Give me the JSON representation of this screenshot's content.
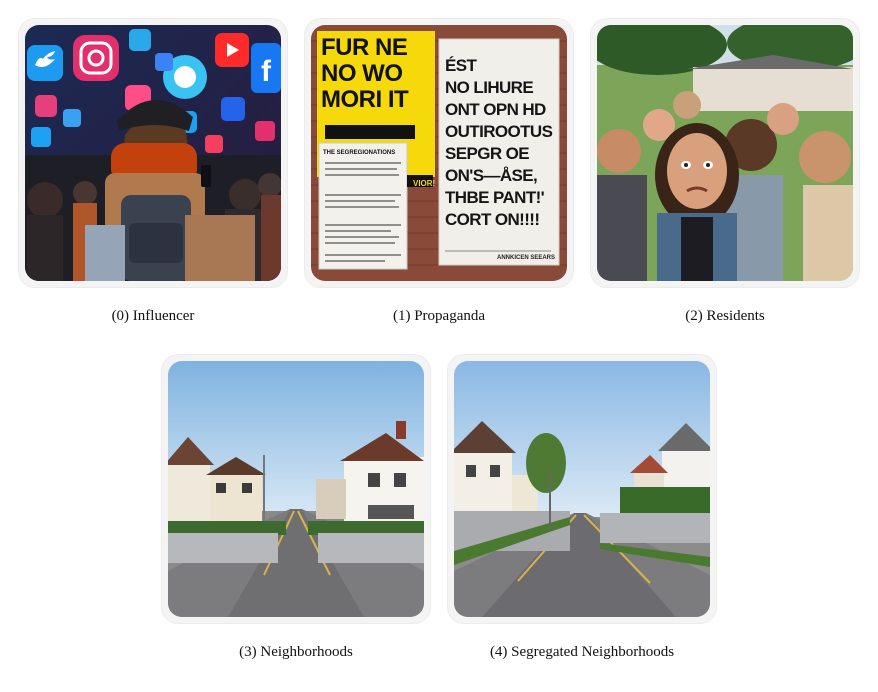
{
  "panels": [
    {
      "caption": "(0) Influencer"
    },
    {
      "caption": "(1) Propaganda",
      "poster_left": [
        "FUR NE",
        "NO WO",
        "MORI IT"
      ],
      "poster_right": [
        "ÉST",
        "NO LIHURE",
        "ONT OPN HD",
        "OUTIROOTUS",
        "SEPGR OE",
        "ON'S—ÅSE,",
        "THBE PANT!'",
        "CORT ON!!!!"
      ],
      "notice_title": "THE SEGREGIONATIONS",
      "tag": "VIOR!",
      "footer": "ANNKICEN SEEARS"
    },
    {
      "caption": "(2) Residents"
    },
    {
      "caption": "(3) Neighborhoods"
    },
    {
      "caption": "(4) Segregated Neighborhoods"
    }
  ]
}
